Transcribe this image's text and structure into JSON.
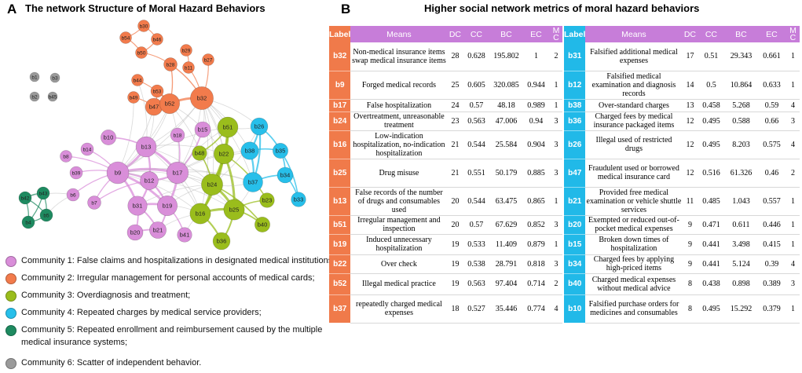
{
  "panel_a": {
    "letter": "A",
    "title": "The network Structure of Moral Hazard Behaviors"
  },
  "panel_b": {
    "letter": "B",
    "title": "Higher social network metrics of moral hazard behaviors"
  },
  "colors": {
    "community_1": "#d98ed9",
    "community_2": "#f27b4c",
    "community_3": "#9abd1c",
    "community_4": "#27bfea",
    "community_5": "#1e8a60",
    "community_6": "#9a9a9a",
    "label_col_left": "#f07a4a",
    "label_col_right": "#21b9e8",
    "header": "#c77dd9"
  },
  "legend": [
    {
      "community": 1,
      "text": "Community 1: False claims and hospitalizations in designated medical institutions;"
    },
    {
      "community": 2,
      "text": "Community 2: Irregular management for personal accounts of medical cards;"
    },
    {
      "community": 3,
      "text": "Community 3: Overdiagnosis and treatment;"
    },
    {
      "community": 4,
      "text": "Community 4: Repeated charges by medical service providers;"
    },
    {
      "community": 5,
      "text": "Community 5: Repeated enrollment and reimbursement caused by the multiple medical insurance systems;"
    },
    {
      "community": 6,
      "text": "Community 6: Scatter of independent behavior."
    }
  ],
  "network": {
    "nodes": [
      {
        "id": "b30",
        "community": 2,
        "degree": 3
      },
      {
        "id": "b54",
        "community": 2,
        "degree": 3
      },
      {
        "id": "b46",
        "community": 2,
        "degree": 3
      },
      {
        "id": "b50",
        "community": 2,
        "degree": 3
      },
      {
        "id": "b29",
        "community": 2,
        "degree": 3
      },
      {
        "id": "b11",
        "community": 2,
        "degree": 3
      },
      {
        "id": "b27",
        "community": 2,
        "degree": 3
      },
      {
        "id": "b28",
        "community": 2,
        "degree": 5
      },
      {
        "id": "b44",
        "community": 2,
        "degree": 3
      },
      {
        "id": "b53",
        "community": 2,
        "degree": 4
      },
      {
        "id": "b49",
        "community": 2,
        "degree": 3
      },
      {
        "id": "b47",
        "community": 2,
        "degree": 12
      },
      {
        "id": "b52",
        "community": 2,
        "degree": 19
      },
      {
        "id": "b32",
        "community": 2,
        "degree": 28
      },
      {
        "id": "b1",
        "community": 6,
        "degree": 1
      },
      {
        "id": "b3",
        "community": 6,
        "degree": 1
      },
      {
        "id": "b2",
        "community": 6,
        "degree": 1
      },
      {
        "id": "b45",
        "community": 6,
        "degree": 1
      },
      {
        "id": "b10",
        "community": 1,
        "degree": 8
      },
      {
        "id": "b18",
        "community": 1,
        "degree": 6
      },
      {
        "id": "b15",
        "community": 1,
        "degree": 9
      },
      {
        "id": "b14",
        "community": 1,
        "degree": 4
      },
      {
        "id": "b13",
        "community": 1,
        "degree": 20
      },
      {
        "id": "b8",
        "community": 1,
        "degree": 3
      },
      {
        "id": "b39",
        "community": 1,
        "degree": 4
      },
      {
        "id": "b9",
        "community": 1,
        "degree": 25
      },
      {
        "id": "b17",
        "community": 1,
        "degree": 24
      },
      {
        "id": "b12",
        "community": 1,
        "degree": 14
      },
      {
        "id": "b6",
        "community": 1,
        "degree": 4
      },
      {
        "id": "b7",
        "community": 1,
        "degree": 5
      },
      {
        "id": "b31",
        "community": 1,
        "degree": 17
      },
      {
        "id": "b19",
        "community": 1,
        "degree": 19
      },
      {
        "id": "b20",
        "community": 1,
        "degree": 9
      },
      {
        "id": "b21",
        "community": 1,
        "degree": 11
      },
      {
        "id": "b41",
        "community": 1,
        "degree": 7
      },
      {
        "id": "b51",
        "community": 3,
        "degree": 20
      },
      {
        "id": "b48",
        "community": 3,
        "degree": 7
      },
      {
        "id": "b22",
        "community": 3,
        "degree": 19
      },
      {
        "id": "b24",
        "community": 3,
        "degree": 23
      },
      {
        "id": "b16",
        "community": 3,
        "degree": 21
      },
      {
        "id": "b25",
        "community": 3,
        "degree": 21
      },
      {
        "id": "b36",
        "community": 3,
        "degree": 12
      },
      {
        "id": "b40",
        "community": 3,
        "degree": 8
      },
      {
        "id": "b23",
        "community": 3,
        "degree": 7
      },
      {
        "id": "b26",
        "community": 4,
        "degree": 12
      },
      {
        "id": "b38",
        "community": 4,
        "degree": 13
      },
      {
        "id": "b35",
        "community": 4,
        "degree": 8
      },
      {
        "id": "b34",
        "community": 4,
        "degree": 9
      },
      {
        "id": "b37",
        "community": 4,
        "degree": 18
      },
      {
        "id": "b33",
        "community": 4,
        "degree": 7
      },
      {
        "id": "b42",
        "community": 5,
        "degree": 4
      },
      {
        "id": "b43",
        "community": 5,
        "degree": 4
      },
      {
        "id": "b5",
        "community": 5,
        "degree": 4
      },
      {
        "id": "b4",
        "community": 5,
        "degree": 4
      }
    ],
    "edges": [
      [
        "b30",
        "b46"
      ],
      [
        "b30",
        "b54"
      ],
      [
        "b54",
        "b50"
      ],
      [
        "b46",
        "b50"
      ],
      [
        "b50",
        "b28"
      ],
      [
        "b29",
        "b11"
      ],
      [
        "b11",
        "b32"
      ],
      [
        "b27",
        "b32"
      ],
      [
        "b28",
        "b52"
      ],
      [
        "b28",
        "b32"
      ],
      [
        "b44",
        "b52"
      ],
      [
        "b53",
        "b52"
      ],
      [
        "b49",
        "b47"
      ],
      [
        "b47",
        "b52"
      ],
      [
        "b53",
        "b47"
      ],
      [
        "b52",
        "b32"
      ],
      [
        "b32",
        "b51"
      ],
      [
        "b32",
        "b22"
      ],
      [
        "b32",
        "b24"
      ],
      [
        "b32",
        "b25"
      ],
      [
        "b32",
        "b26"
      ],
      [
        "b32",
        "b37"
      ],
      [
        "b32",
        "b17"
      ],
      [
        "b32",
        "b13"
      ],
      [
        "b32",
        "b9"
      ],
      [
        "b32",
        "b16"
      ],
      [
        "b32",
        "b38"
      ],
      [
        "b32",
        "b15"
      ],
      [
        "b52",
        "b13"
      ],
      [
        "b52",
        "b9"
      ],
      [
        "b52",
        "b17"
      ],
      [
        "b52",
        "b24"
      ],
      [
        "b52",
        "b22"
      ],
      [
        "b47",
        "b13"
      ],
      [
        "b47",
        "b9"
      ],
      [
        "b49",
        "b9"
      ],
      [
        "b44",
        "b13"
      ],
      [
        "b10",
        "b13"
      ],
      [
        "b18",
        "b17"
      ],
      [
        "b15",
        "b17"
      ],
      [
        "b14",
        "b9"
      ],
      [
        "b8",
        "b9"
      ],
      [
        "b39",
        "b9"
      ],
      [
        "b6",
        "b9"
      ],
      [
        "b7",
        "b9"
      ],
      [
        "b7",
        "b12"
      ],
      [
        "b13",
        "b9"
      ],
      [
        "b13",
        "b17"
      ],
      [
        "b13",
        "b12"
      ],
      [
        "b13",
        "b24"
      ],
      [
        "b13",
        "b22"
      ],
      [
        "b13",
        "b16"
      ],
      [
        "b9",
        "b12"
      ],
      [
        "b9",
        "b17"
      ],
      [
        "b9",
        "b31"
      ],
      [
        "b9",
        "b19"
      ],
      [
        "b9",
        "b24"
      ],
      [
        "b9",
        "b25"
      ],
      [
        "b9",
        "b16"
      ],
      [
        "b9",
        "b51"
      ],
      [
        "b9",
        "b37"
      ],
      [
        "b17",
        "b12"
      ],
      [
        "b17",
        "b19"
      ],
      [
        "b17",
        "b24"
      ],
      [
        "b17",
        "b16"
      ],
      [
        "b17",
        "b25"
      ],
      [
        "b17",
        "b22"
      ],
      [
        "b17",
        "b51"
      ],
      [
        "b17",
        "b37"
      ],
      [
        "b17",
        "b38"
      ],
      [
        "b12",
        "b31"
      ],
      [
        "b12",
        "b19"
      ],
      [
        "b31",
        "b19"
      ],
      [
        "b31",
        "b20"
      ],
      [
        "b31",
        "b21"
      ],
      [
        "b19",
        "b21"
      ],
      [
        "b19",
        "b41"
      ],
      [
        "b19",
        "b16"
      ],
      [
        "b19",
        "b24"
      ],
      [
        "b31",
        "b24"
      ],
      [
        "b20",
        "b21"
      ],
      [
        "b21",
        "b16"
      ],
      [
        "b41",
        "b16"
      ],
      [
        "b51",
        "b22"
      ],
      [
        "b51",
        "b24"
      ],
      [
        "b51",
        "b48"
      ],
      [
        "b48",
        "b24"
      ],
      [
        "b22",
        "b24"
      ],
      [
        "b22",
        "b16"
      ],
      [
        "b22",
        "b25"
      ],
      [
        "b24",
        "b16"
      ],
      [
        "b24",
        "b25"
      ],
      [
        "b16",
        "b25"
      ],
      [
        "b16",
        "b36"
      ],
      [
        "b25",
        "b36"
      ],
      [
        "b25",
        "b40"
      ],
      [
        "b25",
        "b23"
      ],
      [
        "b24",
        "b40"
      ],
      [
        "b22",
        "b23"
      ],
      [
        "b26",
        "b38"
      ],
      [
        "b26",
        "b35"
      ],
      [
        "b26",
        "b37"
      ],
      [
        "b38",
        "b37"
      ],
      [
        "b38",
        "b35"
      ],
      [
        "b35",
        "b34"
      ],
      [
        "b35",
        "b33"
      ],
      [
        "b34",
        "b33"
      ],
      [
        "b37",
        "b34"
      ],
      [
        "b37",
        "b25"
      ],
      [
        "b37",
        "b24"
      ],
      [
        "b38",
        "b22"
      ],
      [
        "b26",
        "b51"
      ],
      [
        "b26",
        "b24"
      ],
      [
        "b42",
        "b43"
      ],
      [
        "b42",
        "b5"
      ],
      [
        "b42",
        "b4"
      ],
      [
        "b43",
        "b5"
      ],
      [
        "b43",
        "b4"
      ],
      [
        "b5",
        "b4"
      ],
      [
        "b5",
        "b6"
      ],
      [
        "b42",
        "b6"
      ]
    ]
  },
  "table": {
    "headers": {
      "label": "Label",
      "means": "Means",
      "dc": "DC",
      "cc": "CC",
      "bc": "BC",
      "ec": "EC",
      "mc": "M C"
    },
    "left_rows": [
      {
        "label": "b32",
        "means": "Non-medical insurance items swap medical insurance items",
        "dc": "28",
        "cc": "0.628",
        "bc": "195.802",
        "ec": "1",
        "mc": "2"
      },
      {
        "label": "b9",
        "means": "Forged medical records",
        "dc": "25",
        "cc": "0.605",
        "bc": "320.085",
        "ec": "0.944",
        "mc": "1"
      },
      {
        "label": "b17",
        "means": "False hospitalization",
        "dc": "24",
        "cc": "0.57",
        "bc": "48.18",
        "ec": "0.989",
        "mc": "1"
      },
      {
        "label": "b24",
        "means": "Overtreatment, unreasonable treatment",
        "dc": "23",
        "cc": "0.563",
        "bc": "47.006",
        "ec": "0.94",
        "mc": "3"
      },
      {
        "label": "b16",
        "means": "Low-indication hospitalization, no-indication hospitalization",
        "dc": "21",
        "cc": "0.544",
        "bc": "25.584",
        "ec": "0.904",
        "mc": "3"
      },
      {
        "label": "b25",
        "means": "Drug misuse",
        "dc": "21",
        "cc": "0.551",
        "bc": "50.179",
        "ec": "0.885",
        "mc": "3"
      },
      {
        "label": "b13",
        "means": "False records of the number of drugs and consumables used",
        "dc": "20",
        "cc": "0.544",
        "bc": "63.475",
        "ec": "0.865",
        "mc": "1"
      },
      {
        "label": "b51",
        "means": "Irregular management and inspection",
        "dc": "20",
        "cc": "0.57",
        "bc": "67.629",
        "ec": "0.852",
        "mc": "3"
      },
      {
        "label": "b19",
        "means": "Induced unnecessary hospitalization",
        "dc": "19",
        "cc": "0.533",
        "bc": "11.409",
        "ec": "0.879",
        "mc": "1"
      },
      {
        "label": "b22",
        "means": "Over check",
        "dc": "19",
        "cc": "0.538",
        "bc": "28.791",
        "ec": "0.818",
        "mc": "3"
      },
      {
        "label": "b52",
        "means": "Illegal medical practice",
        "dc": "19",
        "cc": "0.563",
        "bc": "97.404",
        "ec": "0.714",
        "mc": "2"
      },
      {
        "label": "b37",
        "means": "repeatedly charged medical expenses",
        "dc": "18",
        "cc": "0.527",
        "bc": "35.446",
        "ec": "0.774",
        "mc": "4"
      }
    ],
    "right_rows": [
      {
        "label": "b31",
        "means": "Falsified additional medical expenses",
        "dc": "17",
        "cc": "0.51",
        "bc": "29.343",
        "ec": "0.661",
        "mc": "1"
      },
      {
        "label": "b12",
        "means": "Falsified medical examination and diagnosis records",
        "dc": "14",
        "cc": "0.5",
        "bc": "10.864",
        "ec": "0.633",
        "mc": "1"
      },
      {
        "label": "b38",
        "means": "Over-standard charges",
        "dc": "13",
        "cc": "0.458",
        "bc": "5.268",
        "ec": "0.59",
        "mc": "4"
      },
      {
        "label": "b36",
        "means": "Charged fees by medical insurance packaged items",
        "dc": "12",
        "cc": "0.495",
        "bc": "0.588",
        "ec": "0.66",
        "mc": "3"
      },
      {
        "label": "b26",
        "means": "Illegal used of restricted drugs",
        "dc": "12",
        "cc": "0.495",
        "bc": "8.203",
        "ec": "0.575",
        "mc": "4"
      },
      {
        "label": "b47",
        "means": "Fraudulent used or borrowed medical insurance card",
        "dc": "12",
        "cc": "0.516",
        "bc": "61.326",
        "ec": "0.46",
        "mc": "2"
      },
      {
        "label": "b21",
        "means": "Provided free medical examination or vehicle shuttle services",
        "dc": "11",
        "cc": "0.485",
        "bc": "1.043",
        "ec": "0.557",
        "mc": "1"
      },
      {
        "label": "b20",
        "means": "Exempted or reduced out-of-pocket medical expenses",
        "dc": "9",
        "cc": "0.471",
        "bc": "0.611",
        "ec": "0.446",
        "mc": "1"
      },
      {
        "label": "b15",
        "means": "Broken down times of hospitalization",
        "dc": "9",
        "cc": "0.441",
        "bc": "3.498",
        "ec": "0.415",
        "mc": "1"
      },
      {
        "label": "b34",
        "means": "Charged fees by applying high-priced items",
        "dc": "9",
        "cc": "0.441",
        "bc": "5.124",
        "ec": "0.39",
        "mc": "4"
      },
      {
        "label": "b40",
        "means": "Charged medical expenses without medical advice",
        "dc": "8",
        "cc": "0.438",
        "bc": "0.898",
        "ec": "0.389",
        "mc": "3"
      },
      {
        "label": "b10",
        "means": "Falsified purchase orders for medicines and consumables",
        "dc": "8",
        "cc": "0.495",
        "bc": "15.292",
        "ec": "0.379",
        "mc": "1"
      }
    ]
  }
}
